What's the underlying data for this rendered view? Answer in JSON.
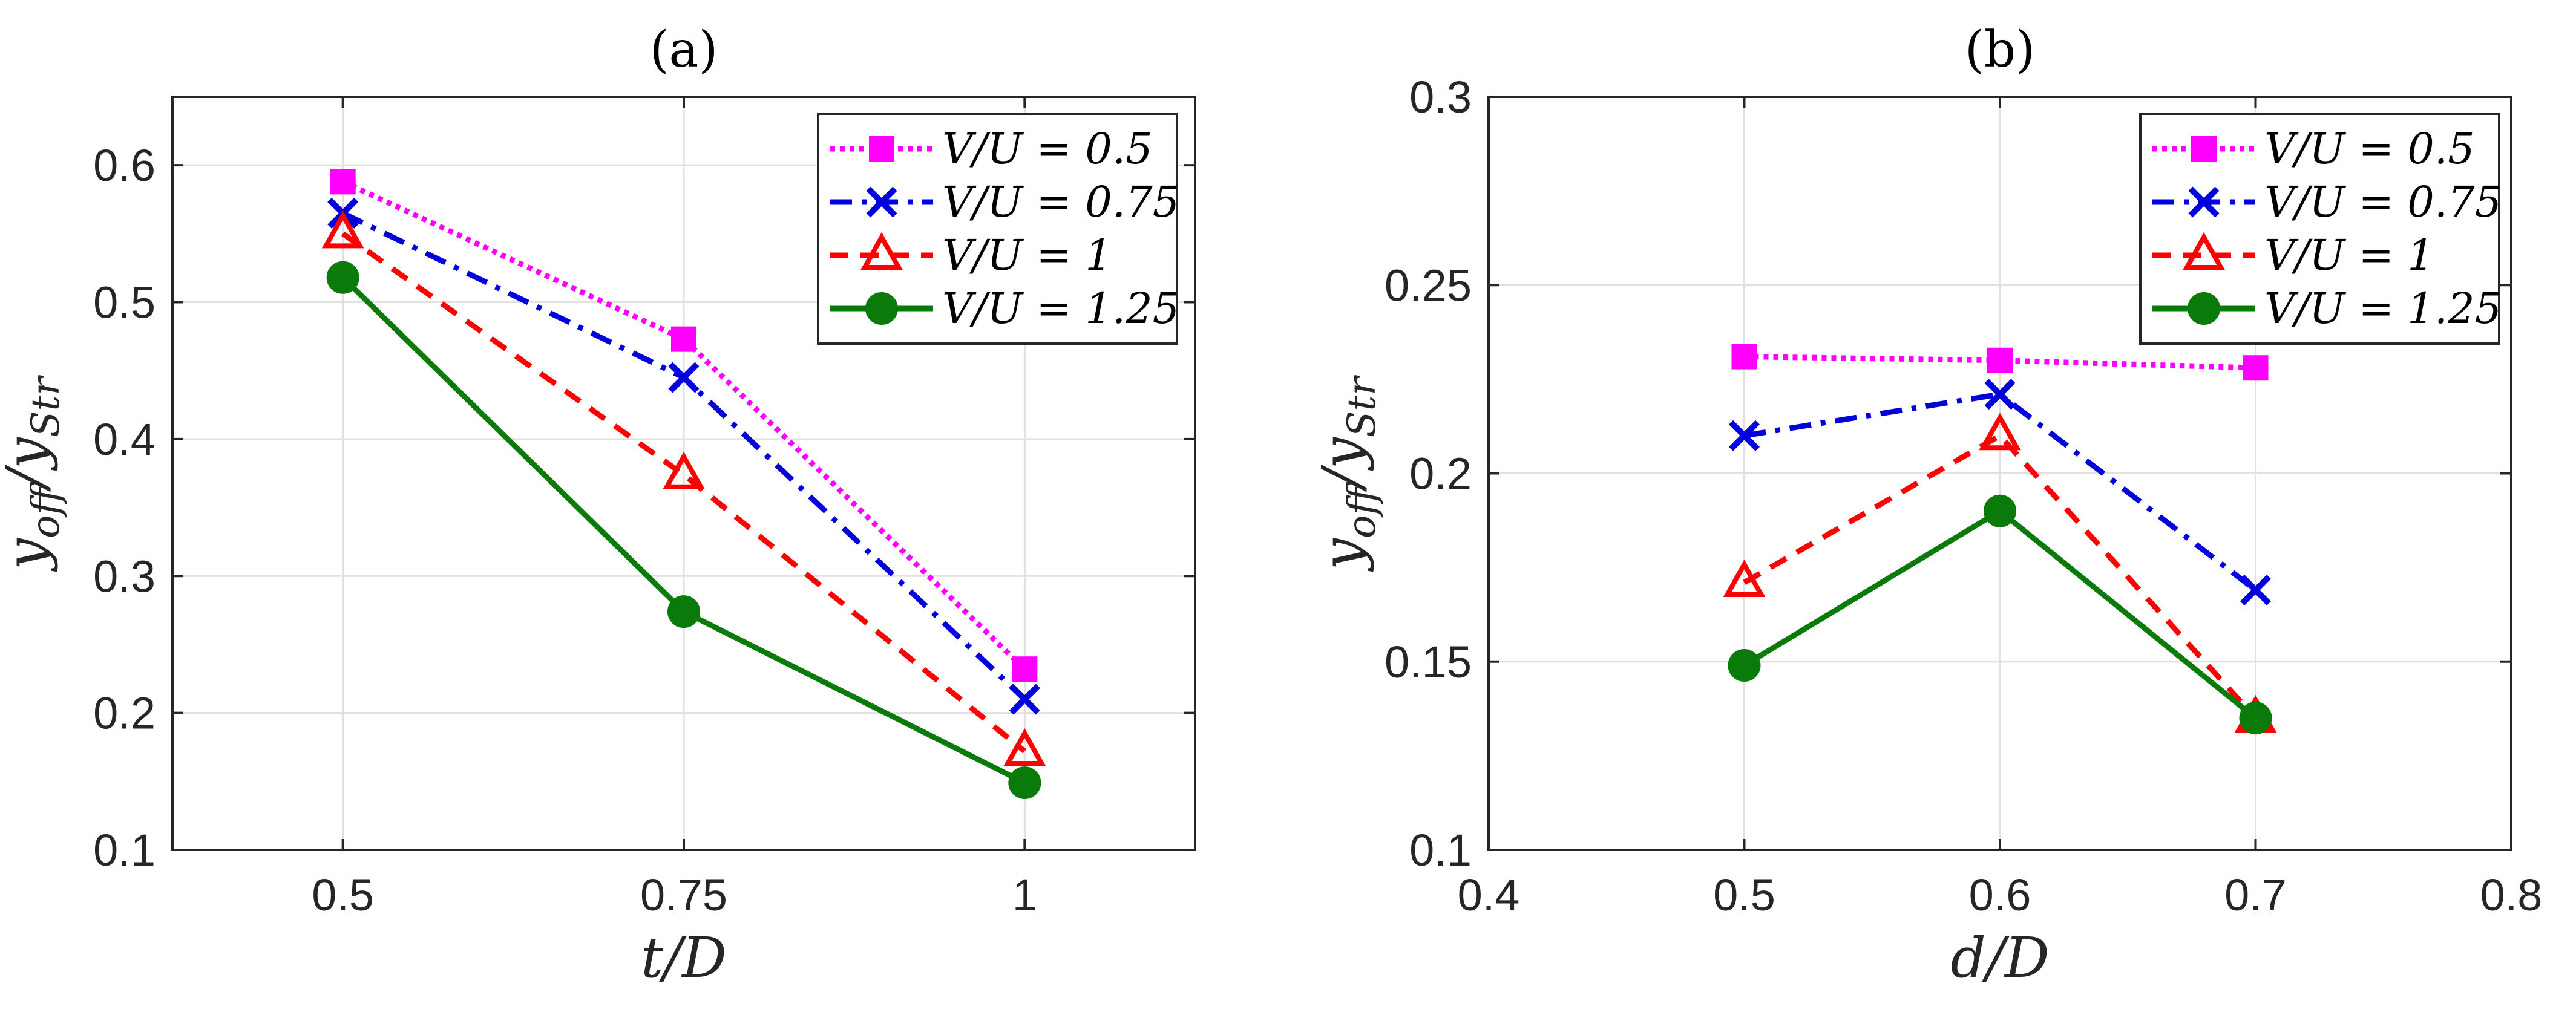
{
  "chart_data": [
    {
      "type": "line",
      "title": "(a)",
      "xlabel": "t/D",
      "ylabel": "y_off / y_Str",
      "ylabel_main": "y",
      "ylabel_sub_num": "off",
      "ylabel_slash": "/",
      "ylabel_sub_den": "Str",
      "x": [
        0.5,
        0.75,
        1
      ],
      "xlim": [
        0.375,
        1.125
      ],
      "ylim": [
        0.1,
        0.65
      ],
      "xticks": [
        0.5,
        0.75,
        1
      ],
      "xtick_labels": [
        "0.5",
        "0.75",
        "1"
      ],
      "yticks": [
        0.1,
        0.2,
        0.3,
        0.4,
        0.5,
        0.6
      ],
      "ytick_labels": [
        "0.1",
        "0.2",
        "0.3",
        "0.4",
        "0.5",
        "0.6"
      ],
      "grid": true,
      "legend_position": "top-right",
      "series": [
        {
          "name": "V/U = 0.5",
          "values": [
            0.588,
            0.473,
            0.232
          ],
          "color": "#ff00ff",
          "marker": "square",
          "line": "dotted"
        },
        {
          "name": "V/U = 0.75",
          "values": [
            0.565,
            0.445,
            0.21
          ],
          "color": "#0000dd",
          "marker": "x",
          "line": "dashdot"
        },
        {
          "name": "V/U = 1",
          "values": [
            0.55,
            0.374,
            0.172
          ],
          "color": "#ff0000",
          "marker": "triangle",
          "line": "dashed"
        },
        {
          "name": "V/U = 1.25",
          "values": [
            0.518,
            0.274,
            0.149
          ],
          "color": "#0a7a0a",
          "marker": "circle",
          "line": "solid"
        }
      ]
    },
    {
      "type": "line",
      "title": "(b)",
      "xlabel": "d/D",
      "ylabel": "y_off / y_Str",
      "ylabel_main": "y",
      "ylabel_sub_num": "off",
      "ylabel_slash": "/",
      "ylabel_sub_den": "Str",
      "x": [
        0.5,
        0.6,
        0.7
      ],
      "xlim": [
        0.4,
        0.8
      ],
      "ylim": [
        0.1,
        0.3
      ],
      "xticks": [
        0.4,
        0.5,
        0.6,
        0.7,
        0.8
      ],
      "xtick_labels": [
        "0.4",
        "0.5",
        "0.6",
        "0.7",
        "0.8"
      ],
      "yticks": [
        0.1,
        0.15,
        0.2,
        0.25,
        0.3
      ],
      "ytick_labels": [
        "0.1",
        "0.15",
        "0.2",
        "0.25",
        "0.3"
      ],
      "grid": true,
      "legend_position": "top-right",
      "series": [
        {
          "name": "V/U = 0.5",
          "values": [
            0.231,
            0.23,
            0.228
          ],
          "color": "#ff00ff",
          "marker": "square",
          "line": "dotted"
        },
        {
          "name": "V/U = 0.75",
          "values": [
            0.21,
            0.221,
            0.169
          ],
          "color": "#0000dd",
          "marker": "x",
          "line": "dashdot"
        },
        {
          "name": "V/U = 1",
          "values": [
            0.171,
            0.21,
            0.135
          ],
          "color": "#ff0000",
          "marker": "triangle",
          "line": "dashed"
        },
        {
          "name": "V/U = 1.25",
          "values": [
            0.149,
            0.19,
            0.135
          ],
          "color": "#0a7a0a",
          "marker": "circle",
          "line": "solid"
        }
      ]
    }
  ]
}
